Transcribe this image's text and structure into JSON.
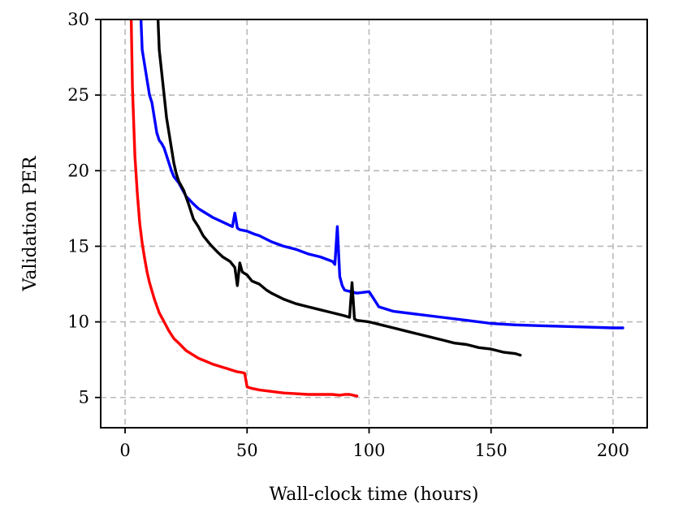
{
  "chart_data": {
    "type": "line",
    "title": "",
    "xlabel": "Wall-clock time (hours)",
    "ylabel": "Validation PER",
    "xlim": [
      -10,
      214
    ],
    "ylim": [
      3,
      30
    ],
    "xticks": [
      0,
      50,
      100,
      150,
      200
    ],
    "yticks": [
      5,
      10,
      15,
      20,
      25,
      30
    ],
    "xtick_labels": [
      "0",
      "50",
      "100",
      "150",
      "200"
    ],
    "ytick_labels": [
      "5",
      "10",
      "15",
      "20",
      "25",
      "30"
    ],
    "grid": true,
    "legend": "none",
    "series": [
      {
        "color": "#ff0000",
        "x": [
          2.5,
          3,
          4,
          5,
          6,
          7,
          8,
          9,
          10,
          12,
          14,
          16,
          18,
          20,
          22,
          25,
          28,
          30,
          33,
          36,
          40,
          42,
          44,
          46,
          48,
          49,
          50,
          52,
          55,
          60,
          65,
          70,
          75,
          80,
          85,
          88,
          90,
          92,
          95
        ],
        "y": [
          30,
          25.5,
          21,
          18.5,
          16.5,
          15.2,
          14.2,
          13.3,
          12.6,
          11.5,
          10.6,
          10.0,
          9.4,
          8.9,
          8.6,
          8.1,
          7.8,
          7.6,
          7.4,
          7.2,
          7.0,
          6.9,
          6.8,
          6.7,
          6.65,
          6.6,
          5.7,
          5.6,
          5.5,
          5.4,
          5.3,
          5.25,
          5.2,
          5.2,
          5.2,
          5.15,
          5.2,
          5.2,
          5.1
        ]
      },
      {
        "color": "#0000ff",
        "x": [
          6.5,
          7,
          8,
          9,
          10,
          11,
          12,
          13,
          14,
          15,
          16,
          17,
          18,
          19,
          20,
          22,
          25,
          28,
          30,
          33,
          36,
          40,
          44,
          45,
          46,
          47,
          50,
          53,
          55,
          60,
          65,
          70,
          75,
          80,
          85,
          86,
          87,
          88,
          89,
          90,
          95,
          100,
          102,
          104,
          110,
          120,
          130,
          140,
          150,
          160,
          170,
          180,
          190,
          200,
          204
        ],
        "y": [
          30,
          28,
          27,
          26,
          25,
          24.5,
          23.5,
          22.5,
          22,
          21.8,
          21.5,
          21,
          20.5,
          20,
          19.6,
          19.2,
          18.3,
          17.8,
          17.5,
          17.2,
          16.9,
          16.6,
          16.3,
          17.2,
          16.2,
          16.1,
          16.0,
          15.8,
          15.7,
          15.3,
          15.0,
          14.8,
          14.5,
          14.3,
          14.0,
          13.8,
          16.3,
          13.0,
          12.4,
          12.1,
          11.9,
          12.0,
          11.5,
          11.0,
          10.7,
          10.5,
          10.3,
          10.1,
          9.9,
          9.8,
          9.75,
          9.7,
          9.65,
          9.6,
          9.6
        ]
      },
      {
        "color": "#000000",
        "x": [
          13.5,
          14,
          15,
          16,
          17,
          18,
          19,
          20,
          21,
          22,
          24,
          26,
          28,
          30,
          32,
          35,
          38,
          40,
          43,
          45,
          46,
          47,
          48,
          50,
          52,
          55,
          58,
          60,
          65,
          70,
          75,
          80,
          85,
          90,
          92,
          93,
          94,
          95,
          100,
          105,
          110,
          115,
          120,
          125,
          130,
          135,
          140,
          145,
          150,
          155,
          160,
          162
        ],
        "y": [
          30,
          28,
          26.5,
          25,
          23.5,
          22.5,
          21.5,
          20.5,
          19.8,
          19.3,
          18.7,
          17.8,
          16.8,
          16.3,
          15.7,
          15.1,
          14.6,
          14.3,
          14.0,
          13.6,
          12.4,
          13.9,
          13.3,
          13.1,
          12.7,
          12.5,
          12.1,
          11.9,
          11.5,
          11.2,
          11.0,
          10.8,
          10.6,
          10.4,
          10.3,
          12.6,
          10.2,
          10.1,
          10.0,
          9.8,
          9.6,
          9.4,
          9.2,
          9.0,
          8.8,
          8.6,
          8.5,
          8.3,
          8.2,
          8.0,
          7.9,
          7.8
        ]
      }
    ]
  }
}
